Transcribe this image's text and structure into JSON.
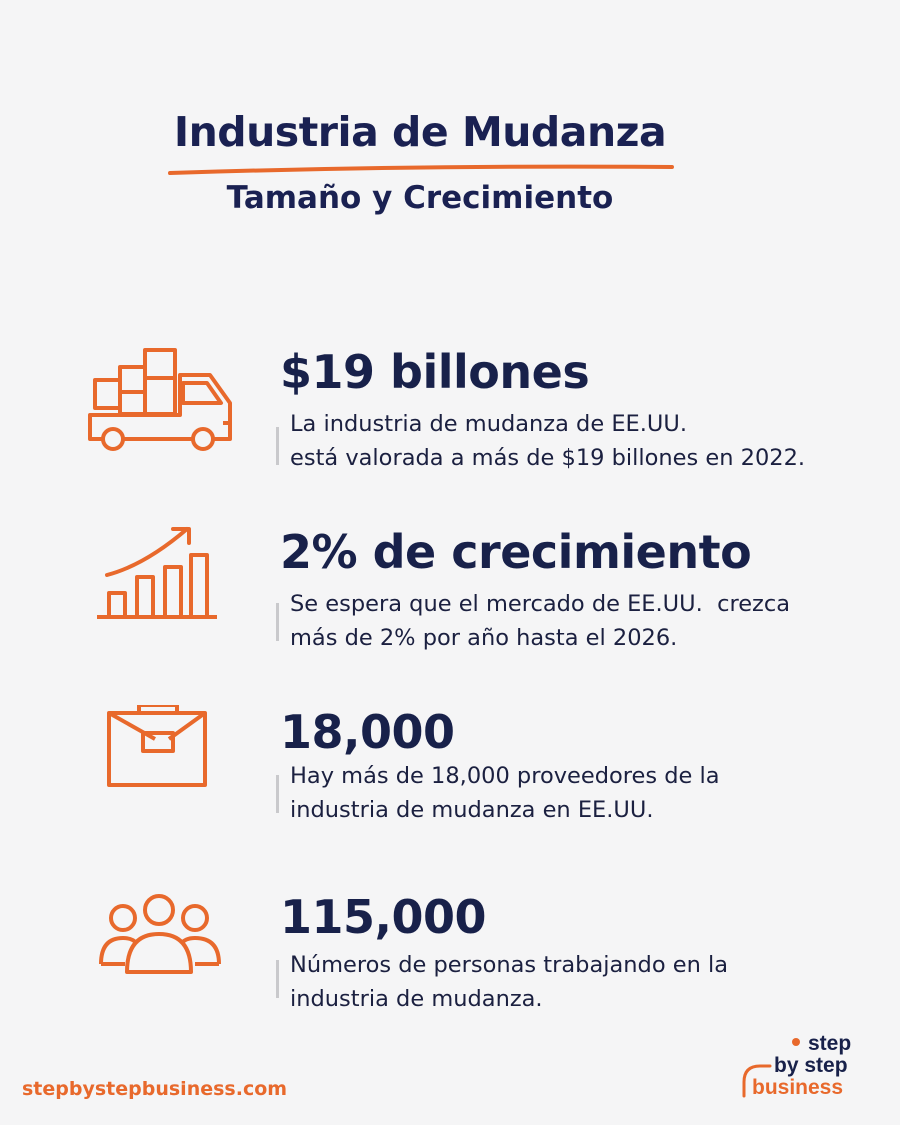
{
  "header": {
    "title": "Industria de Mudanza",
    "subtitle": "Tamaño y Crecimiento"
  },
  "stats": [
    {
      "icon": "moving-truck-icon",
      "value": "$19 billones",
      "description": [
        "La industria de mudanza de EE.UU.",
        "está valorada a más de $19 billones en 2022."
      ]
    },
    {
      "icon": "growth-chart-icon",
      "value": "2% de crecimiento",
      "description": [
        "Se espera que el mercado de EE.UU.  crezca",
        "más de 2% por año hasta el 2026."
      ]
    },
    {
      "icon": "briefcase-icon",
      "value": "18,000",
      "description": [
        "Hay más de 18,000 proveedores de la",
        "industria de mudanza en EE.UU."
      ]
    },
    {
      "icon": "people-group-icon",
      "value": "115,000",
      "description": [
        "Números de personas trabajando en la",
        "industria de mudanza."
      ]
    }
  ],
  "footer": {
    "url": "stepbystepbusiness.com",
    "logo": {
      "line1": "step",
      "line2": "by step",
      "line3": "business"
    }
  },
  "colors": {
    "accent": "#e8692c",
    "navy": "#1a2152",
    "background": "#f5f5f6"
  }
}
